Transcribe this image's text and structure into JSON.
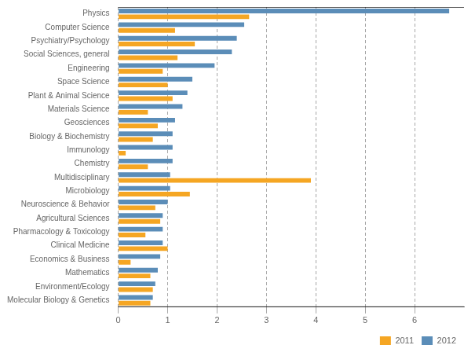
{
  "chart_data": {
    "type": "bar",
    "orientation": "horizontal",
    "categories": [
      "Physics",
      "Computer Science",
      "Psychiatry/Psychology",
      "Social Sciences, general",
      "Engineering",
      "Space Science",
      "Plant & Animal Science",
      "Materials Science",
      "Geosciences",
      "Biology & Biochemistry",
      "Immunology",
      "Chemistry",
      "Multidisciplinary",
      "Microbiology",
      "Neuroscience & Behavior",
      "Agricultural Sciences",
      "Pharmacology & Toxicology",
      "Clinical Medicine",
      "Economics & Business",
      "Mathematics",
      "Environment/Ecology",
      "Molecular Biology & Genetics"
    ],
    "series": [
      {
        "name": "2012",
        "color": "#5b8db8",
        "values": [
          6.7,
          2.55,
          2.4,
          2.3,
          1.95,
          1.5,
          1.4,
          1.3,
          1.15,
          1.1,
          1.1,
          1.1,
          1.05,
          1.05,
          1.0,
          0.9,
          0.9,
          0.9,
          0.85,
          0.8,
          0.75,
          0.7
        ]
      },
      {
        "name": "2011",
        "color": "#f5a623",
        "values": [
          2.65,
          1.15,
          1.55,
          1.2,
          0.9,
          1.0,
          1.1,
          0.6,
          0.8,
          0.7,
          0.15,
          0.6,
          3.9,
          1.45,
          0.75,
          0.85,
          0.55,
          1.0,
          0.25,
          0.65,
          0.7,
          0.65
        ]
      }
    ],
    "xlim": [
      0,
      7
    ],
    "xticks": [
      0,
      1,
      2,
      3,
      4,
      5,
      6
    ],
    "grid": true,
    "legend": "lower right"
  }
}
